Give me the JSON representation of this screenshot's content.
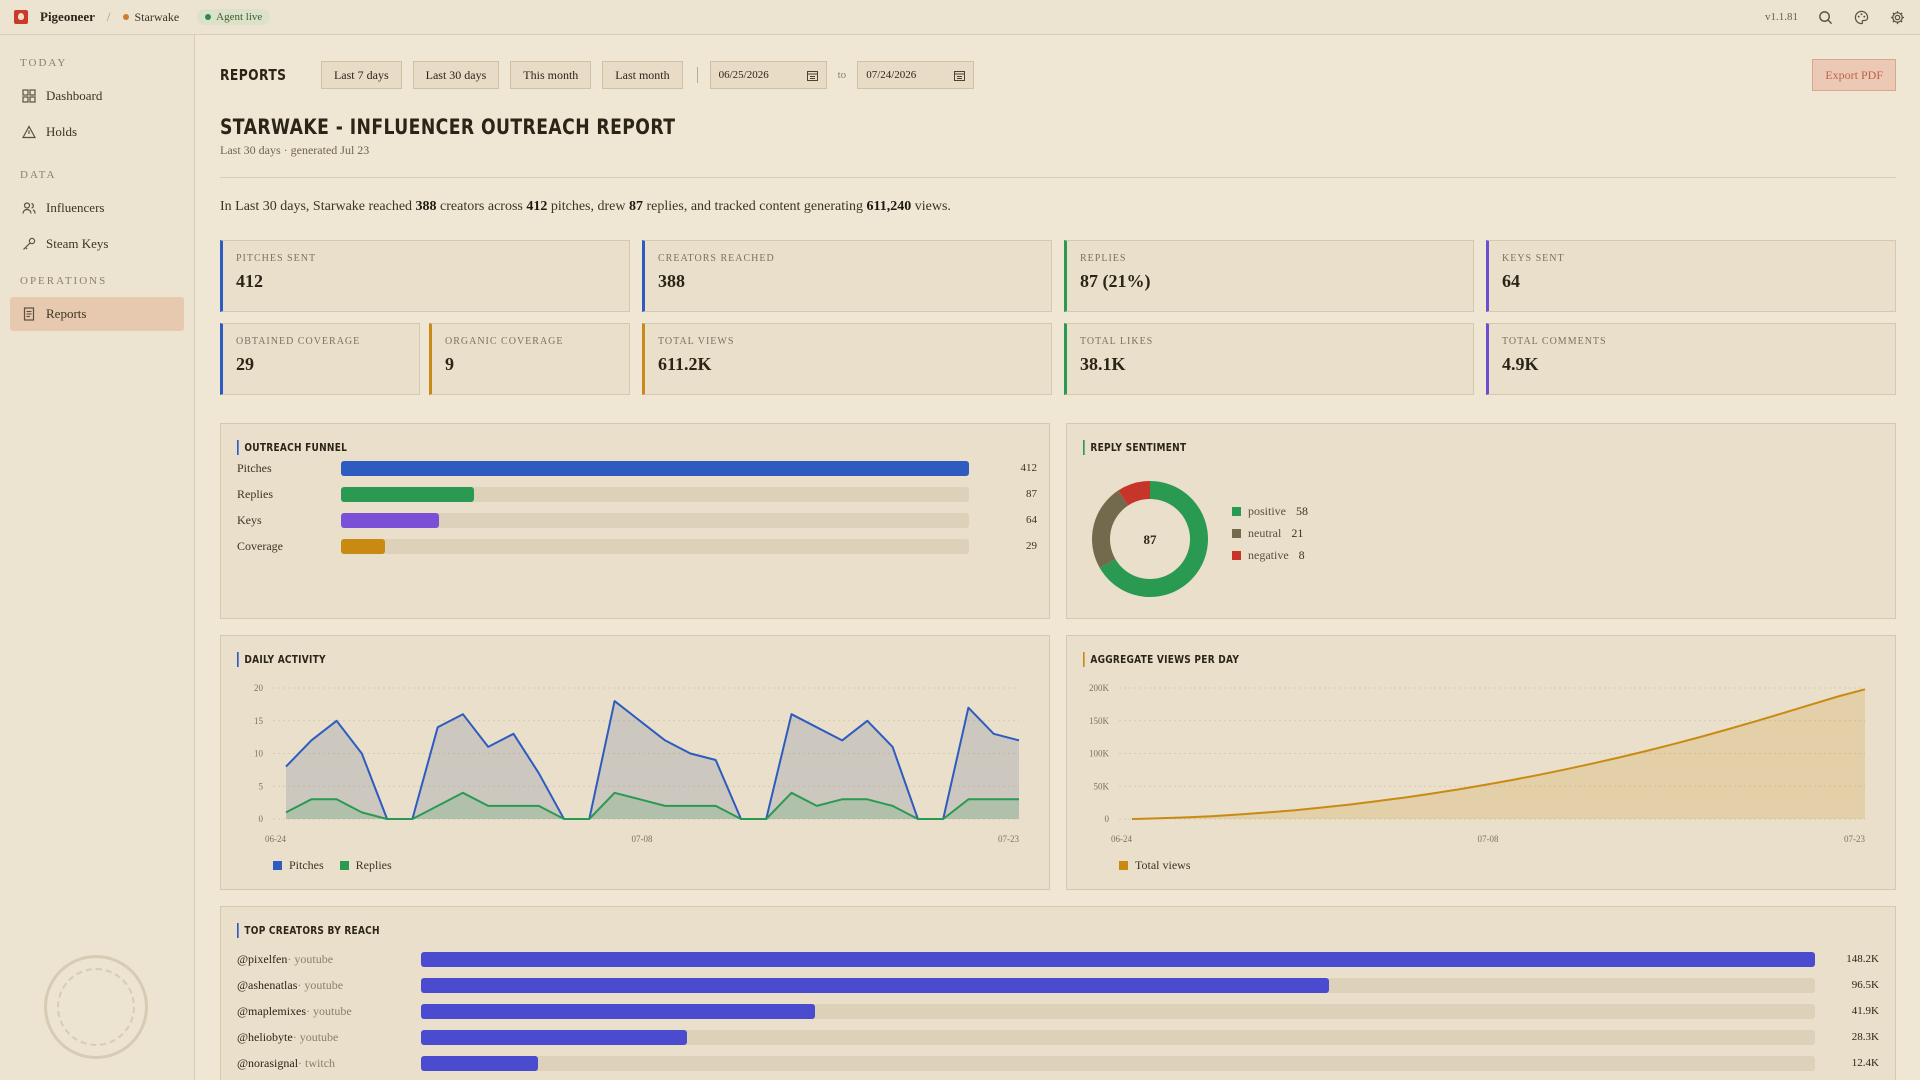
{
  "topbar": {
    "app_name": "Pigeoneer",
    "separator": "/",
    "project": "Starwake",
    "agent_status": "Agent live",
    "version": "v1.1.81"
  },
  "sidebar": {
    "sections": [
      {
        "title": "TODAY",
        "items": [
          {
            "label": "Dashboard",
            "icon": "grid-icon"
          },
          {
            "label": "Holds",
            "icon": "warning-icon"
          }
        ]
      },
      {
        "title": "DATA",
        "items": [
          {
            "label": "Influencers",
            "icon": "users-icon"
          },
          {
            "label": "Steam Keys",
            "icon": "key-icon"
          }
        ]
      },
      {
        "title": "OPERATIONS",
        "items": [
          {
            "label": "Reports",
            "icon": "document-icon",
            "active": true
          }
        ]
      }
    ]
  },
  "toolbar": {
    "label": "REPORTS",
    "ranges": [
      "Last 7 days",
      "Last 30 days",
      "This month",
      "Last month"
    ],
    "date_from": "06/25/2026",
    "to_label": "to",
    "date_to": "07/24/2026",
    "export_label": "Export PDF"
  },
  "report": {
    "title": "STARWAKE - INFLUENCER OUTREACH REPORT",
    "subtitle": "Last 30 days · generated Jul 23",
    "summary": {
      "t1": "In Last 30 days, Starwake reached ",
      "creators": "388",
      "t2": " creators across ",
      "pitches": "412",
      "t3": " pitches, drew ",
      "replies": "87",
      "t4": " replies, and tracked content generating ",
      "views": "611,240",
      "t5": " views."
    }
  },
  "stats": [
    {
      "label": "PITCHES SENT",
      "value": "412",
      "color": "#2d5bbf"
    },
    {
      "label": "CREATORS REACHED",
      "value": "388",
      "color": "#2d5bbf"
    },
    {
      "label": "REPLIES",
      "value": "87 (21%)",
      "color": "#2a9a52"
    },
    {
      "label": "KEYS SENT",
      "value": "64",
      "color": "#6c4fd0"
    },
    {
      "label": "OBTAINED COVERAGE",
      "value": "29",
      "color": "#2d5bbf"
    },
    {
      "label": "ORGANIC COVERAGE",
      "value": "9",
      "color": "#c98a1a"
    },
    {
      "label": "TOTAL VIEWS",
      "value": "611.2K",
      "color": "#c98a1a"
    },
    {
      "label": "TOTAL LIKES",
      "value": "38.1K",
      "color": "#2a9a52"
    },
    {
      "label": "TOTAL COMMENTS",
      "value": "4.9K",
      "color": "#6c4fd0"
    }
  ],
  "funnel": {
    "title": "OUTREACH FUNNEL",
    "max": 412,
    "rows": [
      {
        "label": "Pitches",
        "value": 412,
        "color": "#2d5bbf"
      },
      {
        "label": "Replies",
        "value": 87,
        "color": "#2a9a52"
      },
      {
        "label": "Keys",
        "value": 64,
        "color": "#7b4fd6"
      },
      {
        "label": "Coverage",
        "value": 29,
        "color": "#c98a12"
      }
    ]
  },
  "sentiment": {
    "title": "REPLY SENTIMENT",
    "total": "87",
    "slices": [
      {
        "label": "positive",
        "value": 58,
        "color": "#2a9a52"
      },
      {
        "label": "neutral",
        "value": 21,
        "color": "#736a4e"
      },
      {
        "label": "negative",
        "value": 8,
        "color": "#c7342a"
      }
    ]
  },
  "daily": {
    "title": "DAILY ACTIVITY",
    "legend": [
      {
        "label": "Pitches",
        "color": "#2d5bbf"
      },
      {
        "label": "Replies",
        "color": "#2a9a52"
      }
    ]
  },
  "views_chart": {
    "title": "AGGREGATE VIEWS PER DAY",
    "legend": [
      {
        "label": "Total views",
        "color": "#c98a12"
      }
    ]
  },
  "chart_data": [
    {
      "type": "line",
      "title": "DAILY ACTIVITY",
      "ylim": [
        0,
        20
      ],
      "yticks": [
        "0",
        "5",
        "10",
        "15",
        "20"
      ],
      "xticks": [
        "06-24",
        "07-08",
        "07-23"
      ],
      "grid": true,
      "legend": "bottom-left",
      "series": [
        {
          "name": "Pitches",
          "color": "#2d5bbf",
          "values": [
            8,
            12,
            15,
            10,
            0,
            0,
            14,
            16,
            11,
            13,
            7,
            0,
            0,
            18,
            15,
            12,
            10,
            9,
            0,
            0,
            16,
            14,
            12,
            15,
            11,
            0,
            0,
            17,
            13,
            12
          ]
        },
        {
          "name": "Replies",
          "color": "#2a9a52",
          "values": [
            1,
            3,
            3,
            1,
            0,
            0,
            2,
            4,
            2,
            2,
            2,
            0,
            0,
            4,
            3,
            2,
            2,
            2,
            0,
            0,
            4,
            2,
            3,
            3,
            2,
            0,
            0,
            3,
            3,
            3
          ]
        }
      ]
    },
    {
      "type": "area",
      "title": "AGGREGATE VIEWS PER DAY",
      "ylim": [
        0,
        200000
      ],
      "yticks": [
        "0",
        "50K",
        "100K",
        "150K",
        "200K"
      ],
      "xticks": [
        "06-24",
        "07-08",
        "07-23"
      ],
      "grid": true,
      "legend": "bottom-left",
      "series": [
        {
          "name": "Total views",
          "color": "#c98a12",
          "values": [
            0,
            1000,
            2500,
            4500,
            7000,
            10000,
            13500,
            17500,
            22000,
            27000,
            32500,
            38500,
            45000,
            52000,
            59500,
            67500,
            76000,
            85000,
            94500,
            104500,
            115000,
            126000,
            137500,
            149500,
            162000,
            174500,
            187000,
            198000
          ]
        }
      ]
    },
    {
      "type": "bar",
      "title": "TOP CREATORS BY REACH",
      "categories": [
        "@pixelfen",
        "@ashenatlas",
        "@maplemixes",
        "@heliobyte",
        "@norasignal"
      ],
      "values": [
        148200,
        96500,
        41900,
        28300,
        12400
      ]
    }
  ],
  "creators": {
    "title": "TOP CREATORS BY REACH",
    "max": 148200,
    "rows": [
      {
        "handle": "@pixelfen",
        "platform": "· youtube",
        "value": 148200,
        "display": "148.2K"
      },
      {
        "handle": "@ashenatlas",
        "platform": "· youtube",
        "value": 96500,
        "display": "96.5K"
      },
      {
        "handle": "@maplemixes",
        "platform": "· youtube",
        "value": 41900,
        "display": "41.9K"
      },
      {
        "handle": "@heliobyte",
        "platform": "· youtube",
        "value": 28300,
        "display": "28.3K"
      },
      {
        "handle": "@norasignal",
        "platform": "· twitch",
        "value": 12400,
        "display": "12.4K"
      }
    ]
  }
}
